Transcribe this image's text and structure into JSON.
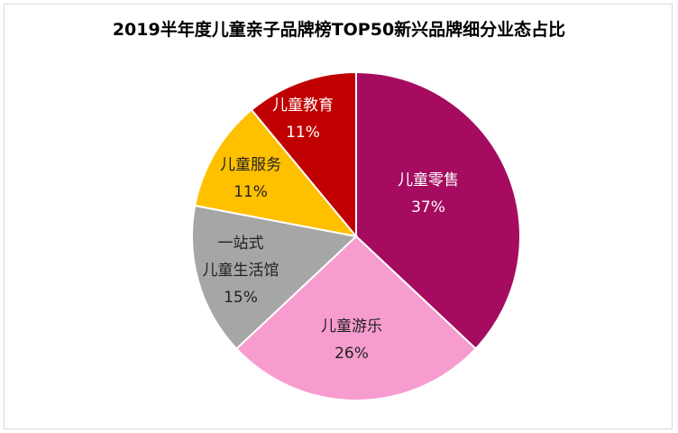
{
  "chart_data": {
    "type": "pie",
    "title": "2019半年度儿童亲子品牌榜TOP50新兴品牌细分业态占比",
    "slices": [
      {
        "label": [
          "儿童零售"
        ],
        "value": 37,
        "percent_label": "37%",
        "color": "#a50c60",
        "text_color": "#ffffff"
      },
      {
        "label": [
          "儿童游乐"
        ],
        "value": 26,
        "percent_label": "26%",
        "color": "#f79ccf",
        "text_color": "#222222"
      },
      {
        "label": [
          "一站式",
          "儿童生活馆"
        ],
        "value": 15,
        "percent_label": "15%",
        "color": "#a6a6a6",
        "text_color": "#222222"
      },
      {
        "label": [
          "儿童服务"
        ],
        "value": 11,
        "percent_label": "11%",
        "color": "#ffc000",
        "text_color": "#222222"
      },
      {
        "label": [
          "儿童教育"
        ],
        "value": 11,
        "percent_label": "11%",
        "color": "#c00000",
        "text_color": "#ffffff"
      }
    ],
    "start_angle_deg": 0,
    "direction": "clockwise",
    "legend": "none"
  }
}
